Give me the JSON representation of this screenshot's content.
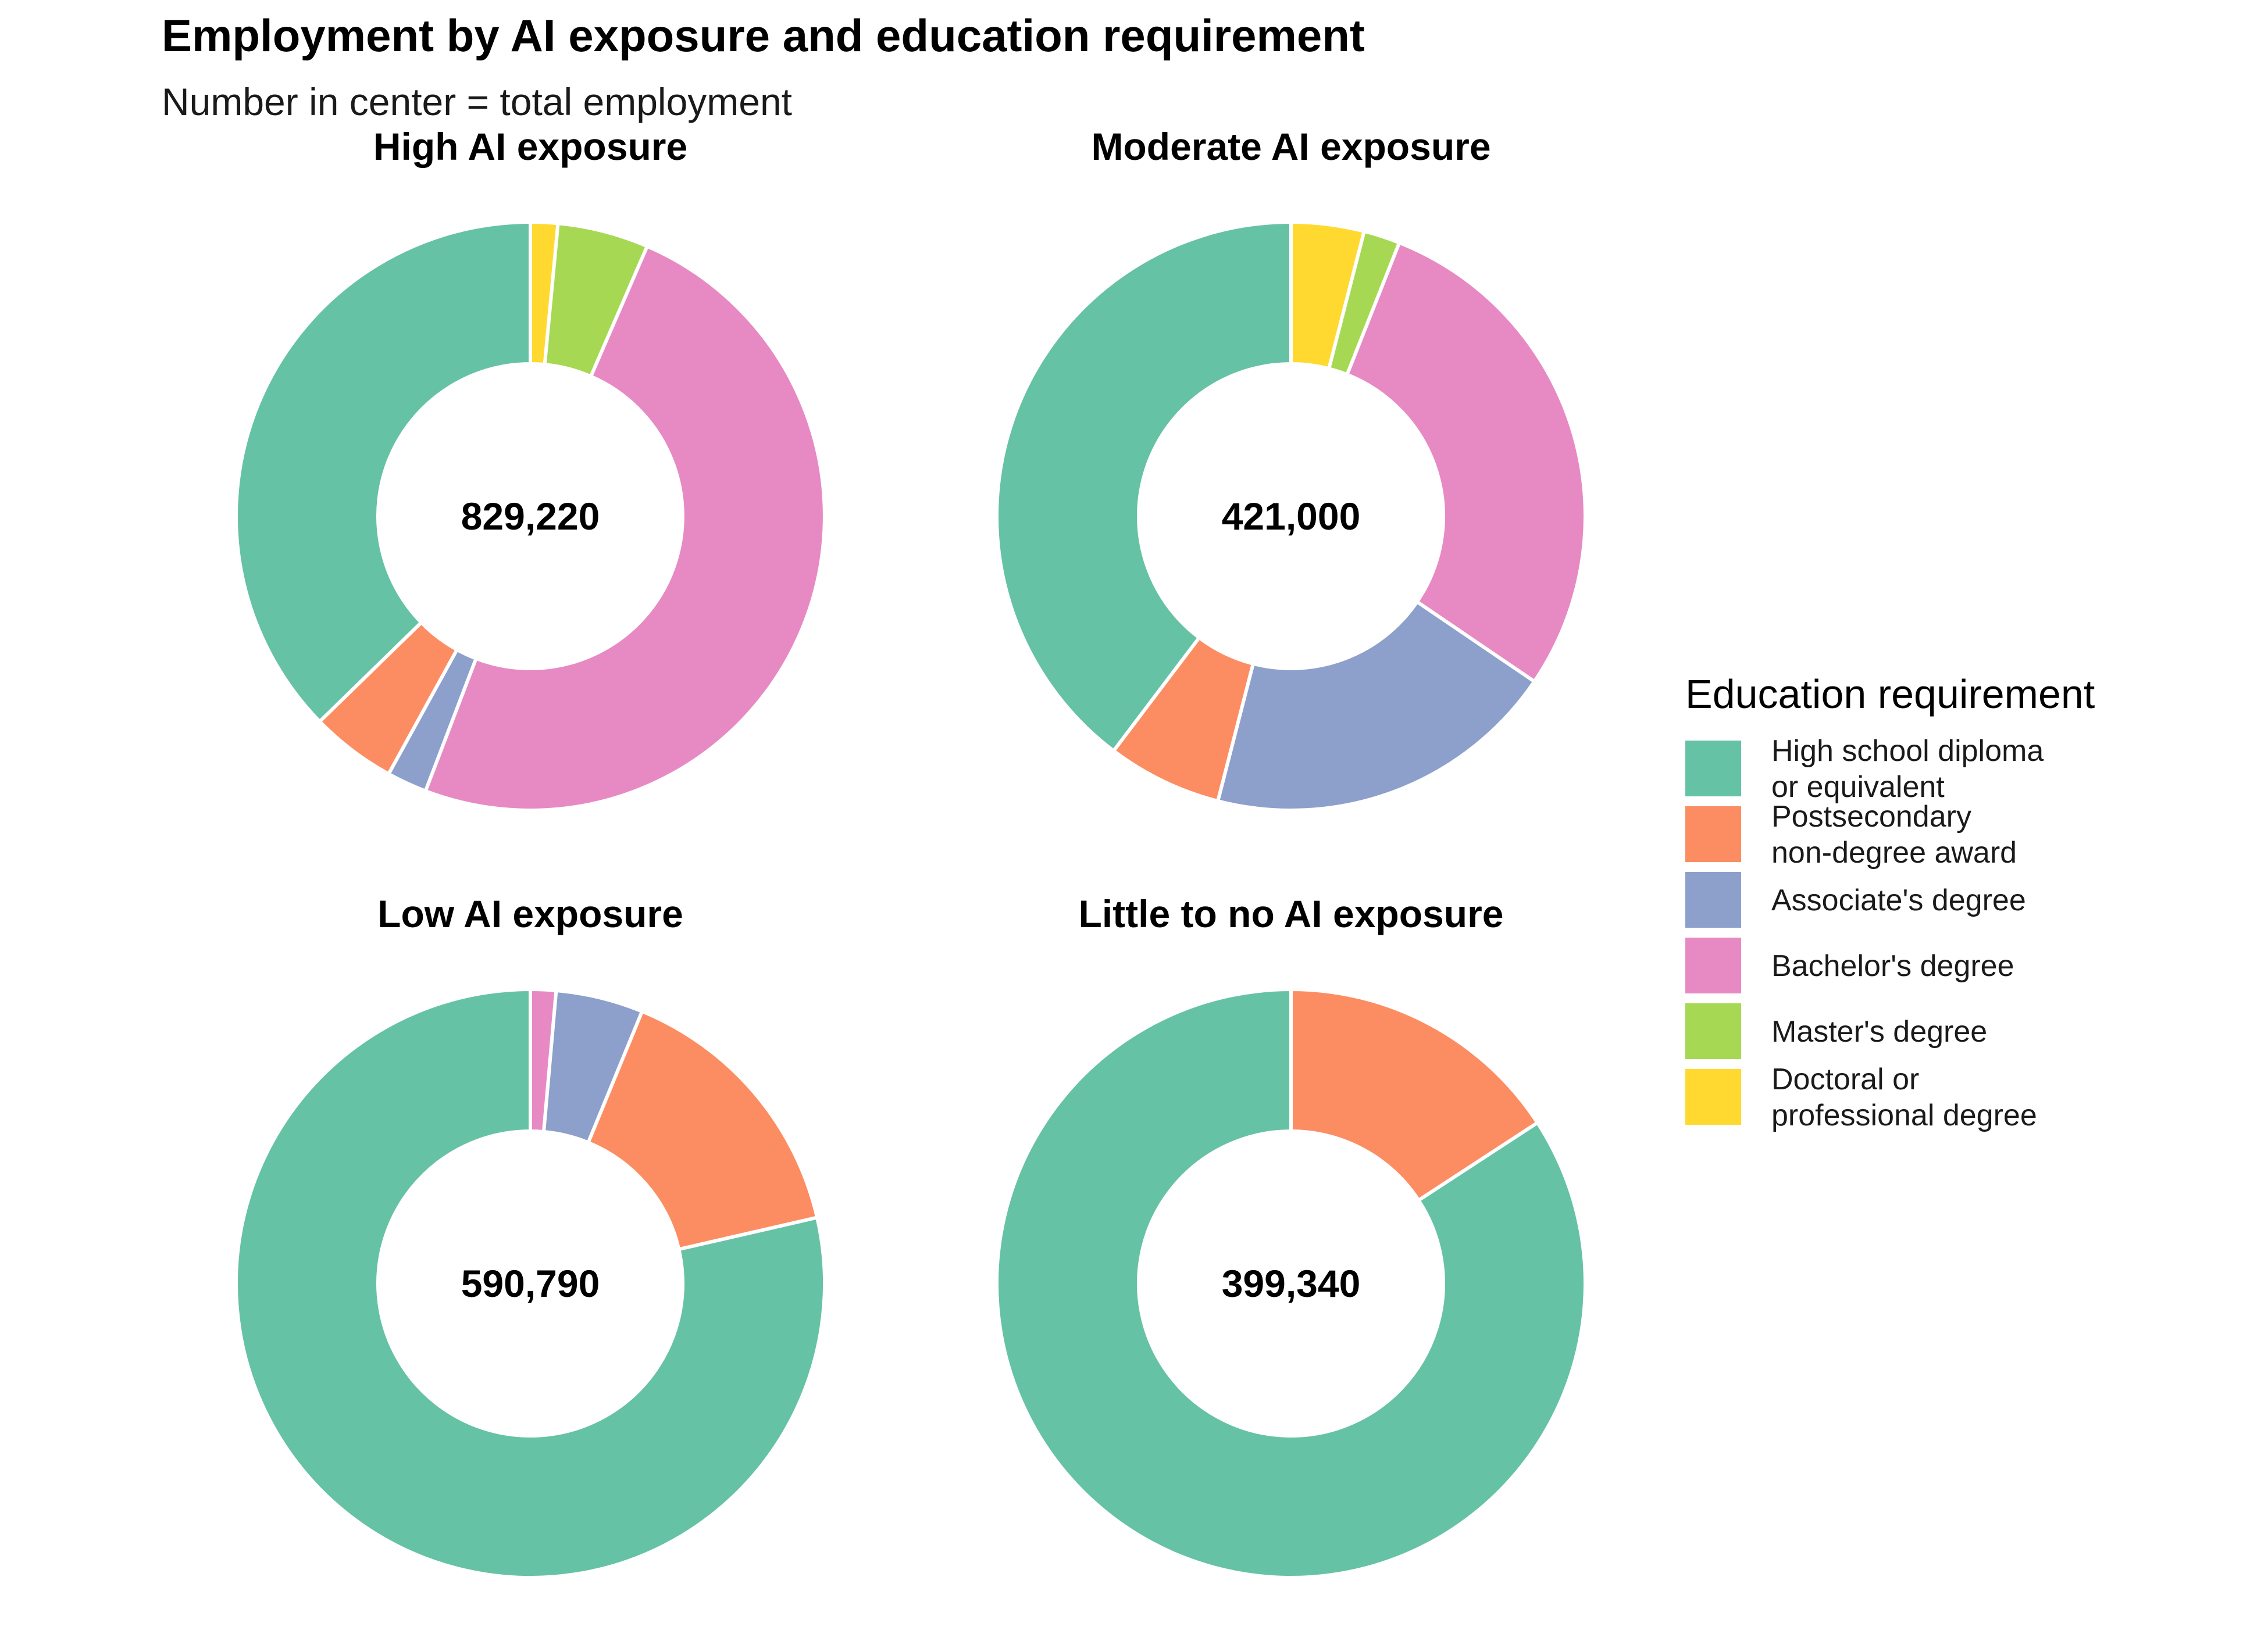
{
  "chart_data": {
    "type": "pie",
    "variant": "donut",
    "title": "Employment by AI exposure and education requirement",
    "subtitle": "Number in center = total employment",
    "legend": {
      "title": "Education requirement",
      "placement": "right",
      "entries": [
        {
          "key": "hs",
          "lines": [
            "High school diploma",
            "or equivalent"
          ]
        },
        {
          "key": "psnd",
          "lines": [
            "Postsecondary",
            "non-degree award"
          ]
        },
        {
          "key": "assoc",
          "lines": [
            "Associate's degree"
          ]
        },
        {
          "key": "bach",
          "lines": [
            "Bachelor's degree"
          ]
        },
        {
          "key": "mast",
          "lines": [
            "Master's degree"
          ]
        },
        {
          "key": "doct",
          "lines": [
            "Doctoral or",
            "professional degree"
          ]
        }
      ]
    },
    "colors": {
      "hs": "#66c2a5",
      "psnd": "#fc8d62",
      "assoc": "#8da0cb",
      "bach": "#e78ac3",
      "mast": "#a6d854",
      "doct": "#ffd92f"
    },
    "panels": [
      {
        "title": "High AI exposure",
        "total_label": "829,220",
        "percent_order": [
          "doct",
          "mast",
          "bach",
          "assoc",
          "psnd",
          "hs"
        ],
        "percent_values": [
          1.5,
          5.0,
          49.3,
          2.2,
          4.7,
          37.3
        ]
      },
      {
        "title": "Moderate AI exposure",
        "total_label": "421,000",
        "percent_order": [
          "doct",
          "mast",
          "bach",
          "assoc",
          "psnd",
          "hs"
        ],
        "percent_values": [
          4.0,
          2.0,
          28.5,
          19.5,
          6.3,
          39.7
        ]
      },
      {
        "title": "Low AI exposure",
        "total_label": "590,790",
        "percent_order": [
          "doct",
          "mast",
          "bach",
          "assoc",
          "psnd",
          "hs"
        ],
        "percent_values": [
          0,
          0,
          1.4,
          4.8,
          15.2,
          78.6
        ]
      },
      {
        "title": "Little to no AI exposure",
        "total_label": "399,340",
        "percent_order": [
          "doct",
          "mast",
          "bach",
          "assoc",
          "psnd",
          "hs"
        ],
        "percent_values": [
          0,
          0,
          0,
          0,
          15.8,
          84.2
        ]
      }
    ]
  }
}
